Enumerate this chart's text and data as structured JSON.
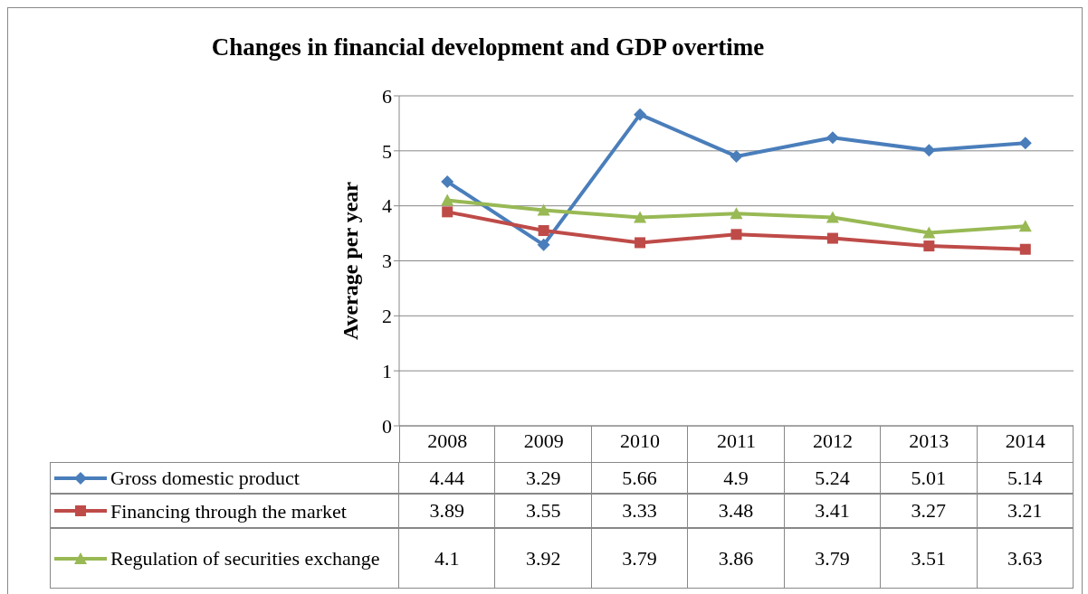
{
  "chart_data": {
    "type": "line",
    "title": "Changes in  financial development and GDP overtime",
    "ylabel": "Average per year",
    "categories": [
      "2008",
      "2009",
      "2010",
      "2011",
      "2012",
      "2013",
      "2014"
    ],
    "series": [
      {
        "name": "Gross domestic product",
        "color": "#4a7ebb",
        "marker": "diamond",
        "values": [
          4.44,
          3.29,
          5.66,
          4.9,
          5.24,
          5.01,
          5.14
        ]
      },
      {
        "name": "Financing through the market",
        "color": "#be4b48",
        "marker": "square",
        "values": [
          3.89,
          3.55,
          3.33,
          3.48,
          3.41,
          3.27,
          3.21
        ]
      },
      {
        "name": "Regulation of securities exchange",
        "color": "#98b954",
        "marker": "triangle",
        "values": [
          4.1,
          3.92,
          3.79,
          3.86,
          3.79,
          3.51,
          3.63
        ]
      }
    ],
    "ylim": [
      0,
      6
    ],
    "yticks": [
      0,
      1,
      2,
      3,
      4,
      5,
      6
    ],
    "grid": "y",
    "legend": "bottom",
    "data_labels": true
  }
}
